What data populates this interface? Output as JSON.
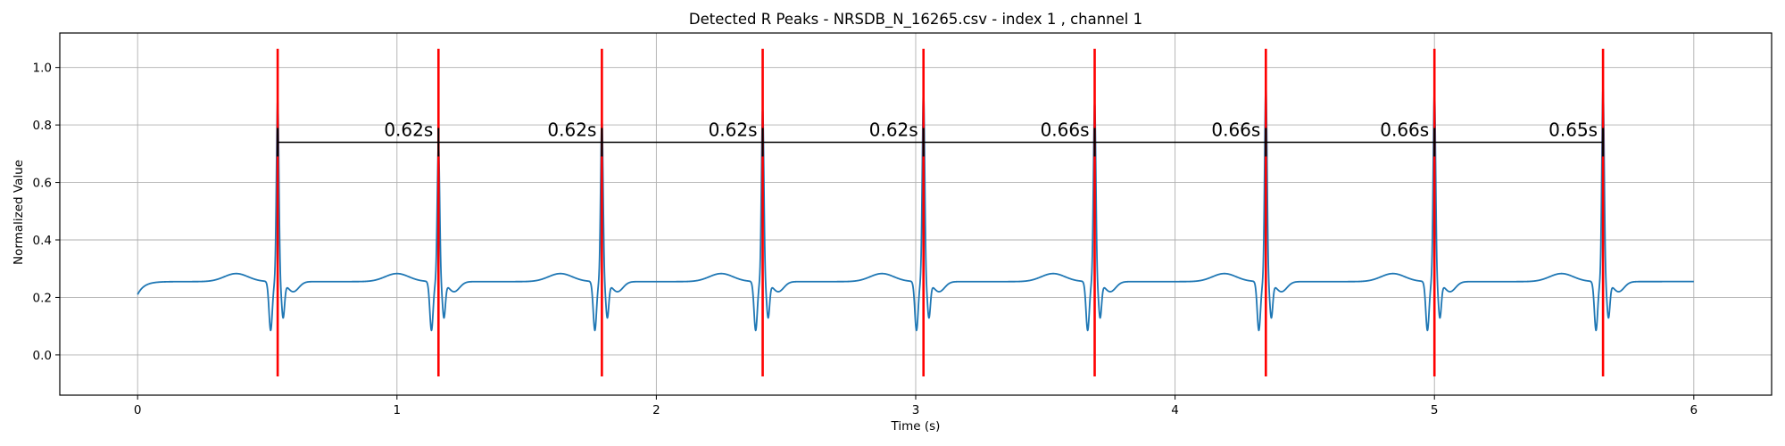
{
  "chart_data": {
    "type": "line",
    "title": "Detected R Peaks - NRSDB_N_16265.csv - index 1 , channel 1",
    "xlabel": "Time (s)",
    "ylabel": "Normalized Value",
    "xlim": [
      -0.3,
      6.3
    ],
    "ylim": [
      -0.14,
      1.12
    ],
    "xticks": [
      0,
      1,
      2,
      3,
      4,
      5,
      6
    ],
    "yticks": [
      0.0,
      0.2,
      0.4,
      0.6,
      0.8,
      1.0
    ],
    "xtick_labels": [
      "0",
      "1",
      "2",
      "3",
      "4",
      "5",
      "6"
    ],
    "ytick_labels": [
      "0.0",
      "0.2",
      "0.4",
      "0.6",
      "0.8",
      "1.0"
    ],
    "grid": true,
    "colors": {
      "signal": "#1f77b4",
      "peaks": "#ff0000",
      "intervals": "#000000"
    },
    "signal": {
      "start": 0.0,
      "end": 6.0,
      "start_value": 0.21,
      "end_value": 0.258,
      "baseline": 0.255,
      "beats": [
        {
          "t": 0.54,
          "peak": 0.86
        },
        {
          "t": 1.16,
          "peak": 0.7
        },
        {
          "t": 1.79,
          "peak": 0.79
        },
        {
          "t": 2.41,
          "peak": 0.83
        },
        {
          "t": 3.03,
          "peak": 0.89
        },
        {
          "t": 3.69,
          "peak": 0.85
        },
        {
          "t": 4.35,
          "peak": 0.91
        },
        {
          "t": 5.0,
          "peak": 0.89
        },
        {
          "t": 5.65,
          "peak": 0.9
        }
      ]
    },
    "r_peaks": [
      0.54,
      1.16,
      1.79,
      2.41,
      3.03,
      3.69,
      4.35,
      5.0,
      5.65
    ],
    "peak_line_range": [
      -0.075,
      1.065
    ],
    "interval_line_y": 0.74,
    "interval_labels": [
      "0.62s",
      "0.62s",
      "0.62s",
      "0.62s",
      "0.66s",
      "0.66s",
      "0.66s",
      "0.65s"
    ]
  }
}
